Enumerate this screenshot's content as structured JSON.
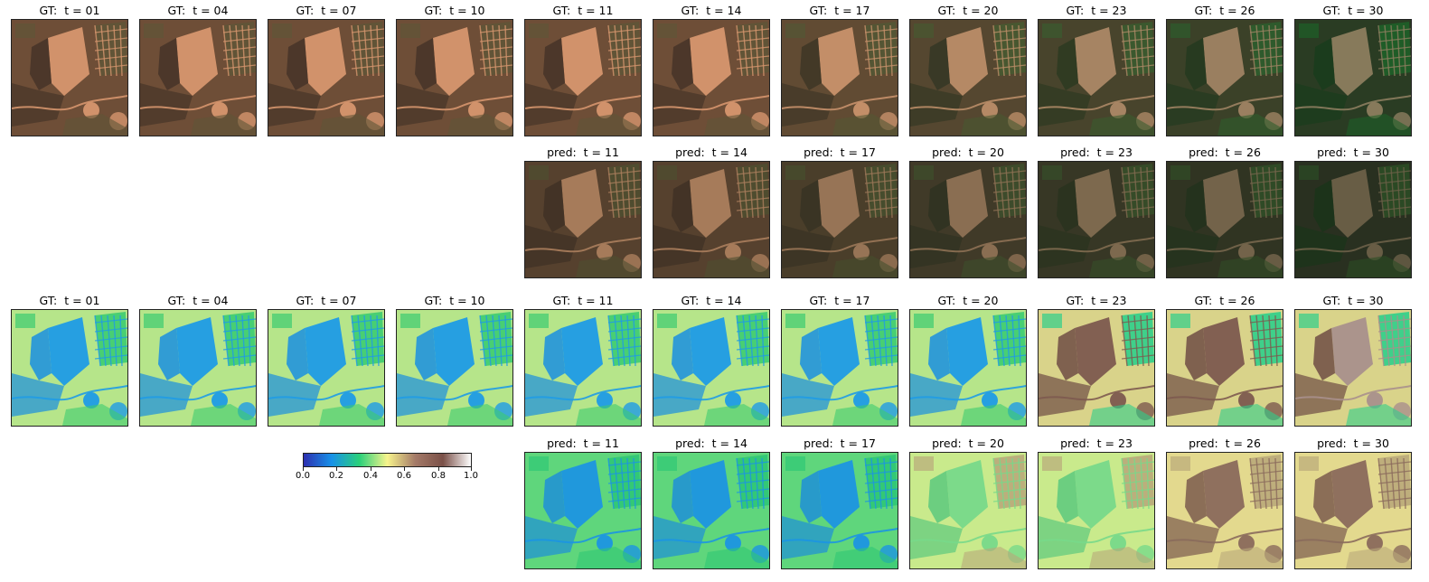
{
  "rows": [
    {
      "id": "rgb-gt",
      "style": "rgb",
      "panels": [
        {
          "title": "GT:  t = 01",
          "t": 1
        },
        {
          "title": "GT:  t = 04",
          "t": 4
        },
        {
          "title": "GT:  t = 07",
          "t": 7
        },
        {
          "title": "GT:  t = 10",
          "t": 10
        },
        {
          "title": "GT:  t = 11",
          "t": 11
        },
        {
          "title": "GT:  t = 14",
          "t": 14
        },
        {
          "title": "GT:  t = 17",
          "t": 17
        },
        {
          "title": "GT:  t = 20",
          "t": 20
        },
        {
          "title": "GT:  t = 23",
          "t": 23
        },
        {
          "title": "GT:  t = 26",
          "t": 26
        },
        {
          "title": "GT:  t = 30",
          "t": 30
        }
      ]
    },
    {
      "id": "rgb-pred",
      "style": "rgb-pred",
      "panels": [
        {
          "title": "pred:  t = 11",
          "t": 11
        },
        {
          "title": "pred:  t = 14",
          "t": 14
        },
        {
          "title": "pred:  t = 17",
          "t": 17
        },
        {
          "title": "pred:  t = 20",
          "t": 20
        },
        {
          "title": "pred:  t = 23",
          "t": 23
        },
        {
          "title": "pred:  t = 26",
          "t": 26
        },
        {
          "title": "pred:  t = 30",
          "t": 30
        }
      ]
    },
    {
      "id": "index-gt",
      "style": "index",
      "panels": [
        {
          "title": "GT:  t = 01",
          "t": 1
        },
        {
          "title": "GT:  t = 04",
          "t": 4
        },
        {
          "title": "GT:  t = 07",
          "t": 7
        },
        {
          "title": "GT:  t = 10",
          "t": 10
        },
        {
          "title": "GT:  t = 11",
          "t": 11
        },
        {
          "title": "GT:  t = 14",
          "t": 14
        },
        {
          "title": "GT:  t = 17",
          "t": 17
        },
        {
          "title": "GT:  t = 20",
          "t": 20
        },
        {
          "title": "GT:  t = 23",
          "t": 23
        },
        {
          "title": "GT:  t = 26",
          "t": 26
        },
        {
          "title": "GT:  t = 30",
          "t": 30
        }
      ]
    },
    {
      "id": "index-pred",
      "style": "index-pred",
      "panels": [
        {
          "title": "pred:  t = 11",
          "t": 11
        },
        {
          "title": "pred:  t = 14",
          "t": 14
        },
        {
          "title": "pred:  t = 17",
          "t": 17
        },
        {
          "title": "pred:  t = 20",
          "t": 20
        },
        {
          "title": "pred:  t = 23",
          "t": 23
        },
        {
          "title": "pred:  t = 26",
          "t": 26
        },
        {
          "title": "pred:  t = 30",
          "t": 30
        }
      ]
    }
  ],
  "colorbar": {
    "ticks": [
      "0.0",
      "0.2",
      "0.4",
      "0.6",
      "0.8",
      "1.0"
    ],
    "range": [
      0.0,
      1.0
    ],
    "colormap": [
      "#2d2fb0",
      "#1791e8",
      "#2ad07a",
      "#f7f48c",
      "#a47a68",
      "#7a5048",
      "#ffffff"
    ]
  }
}
